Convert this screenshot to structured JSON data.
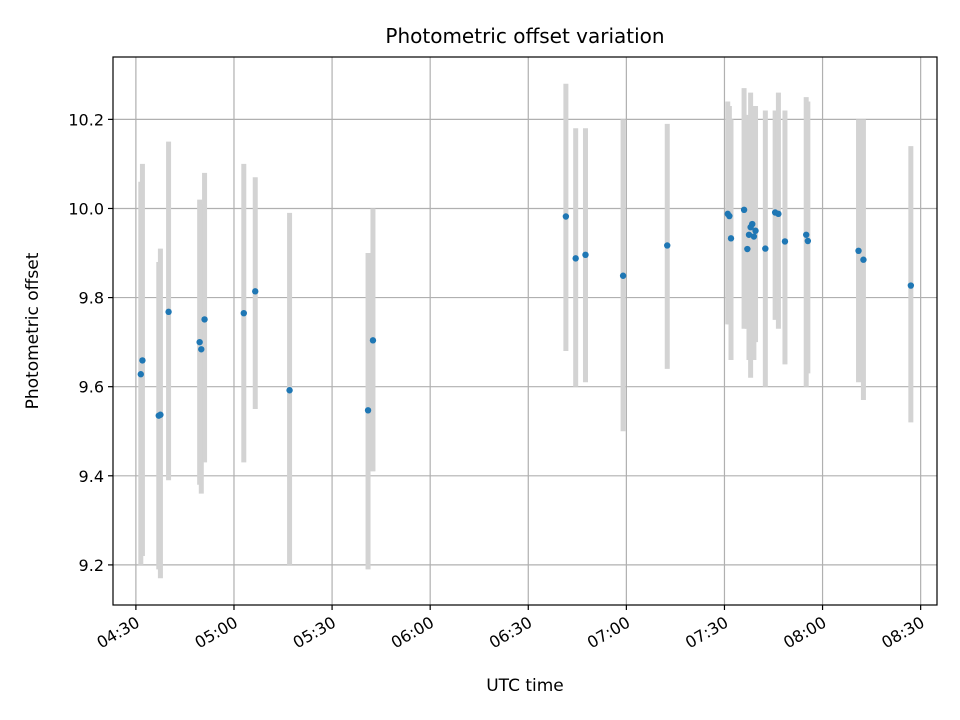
{
  "chart_data": {
    "type": "scatter",
    "title": "Photometric offset variation",
    "xlabel": "UTC time",
    "ylabel": "Photometric offset",
    "x_unit": "minutes",
    "xlim": [
      "04:23",
      "08:35"
    ],
    "ylim": [
      9.11,
      10.34
    ],
    "x_ticks": [
      "04:30",
      "05:00",
      "05:30",
      "06:00",
      "06:30",
      "07:00",
      "07:30",
      "08:00",
      "08:30"
    ],
    "y_ticks": [
      9.2,
      9.4,
      9.6,
      9.8,
      10.0,
      10.2
    ],
    "grid": true,
    "point_color": "#1f77b4",
    "errorbar_color": "#d3d3d3",
    "points": [
      {
        "x": "04:31:30",
        "y": 9.628,
        "ylow": 9.2,
        "yhigh": 10.06
      },
      {
        "x": "04:32:00",
        "y": 9.659,
        "ylow": 9.22,
        "yhigh": 10.1
      },
      {
        "x": "04:37:00",
        "y": 9.535,
        "ylow": 9.19,
        "yhigh": 9.88
      },
      {
        "x": "04:37:30",
        "y": 9.537,
        "ylow": 9.17,
        "yhigh": 9.91
      },
      {
        "x": "04:40:00",
        "y": 9.768,
        "ylow": 9.39,
        "yhigh": 10.15
      },
      {
        "x": "04:49:30",
        "y": 9.7,
        "ylow": 9.38,
        "yhigh": 10.02
      },
      {
        "x": "04:50:00",
        "y": 9.684,
        "ylow": 9.36,
        "yhigh": 10.01
      },
      {
        "x": "04:51:00",
        "y": 9.751,
        "ylow": 9.43,
        "yhigh": 10.08
      },
      {
        "x": "05:03:00",
        "y": 9.765,
        "ylow": 9.43,
        "yhigh": 10.1
      },
      {
        "x": "05:06:30",
        "y": 9.814,
        "ylow": 9.55,
        "yhigh": 10.07
      },
      {
        "x": "05:17:00",
        "y": 9.592,
        "ylow": 9.2,
        "yhigh": 9.99
      },
      {
        "x": "05:41:00",
        "y": 9.547,
        "ylow": 9.19,
        "yhigh": 9.9
      },
      {
        "x": "05:42:30",
        "y": 9.704,
        "ylow": 9.41,
        "yhigh": 10.0
      },
      {
        "x": "06:41:30",
        "y": 9.982,
        "ylow": 9.68,
        "yhigh": 10.28
      },
      {
        "x": "06:44:30",
        "y": 9.888,
        "ylow": 9.6,
        "yhigh": 10.18
      },
      {
        "x": "06:47:30",
        "y": 9.896,
        "ylow": 9.61,
        "yhigh": 10.18
      },
      {
        "x": "06:59:00",
        "y": 9.849,
        "ylow": 9.5,
        "yhigh": 10.2
      },
      {
        "x": "07:12:30",
        "y": 9.917,
        "ylow": 9.64,
        "yhigh": 10.19
      },
      {
        "x": "07:31:00",
        "y": 9.988,
        "ylow": 9.74,
        "yhigh": 10.24
      },
      {
        "x": "07:31:30",
        "y": 9.983,
        "ylow": 9.74,
        "yhigh": 10.23
      },
      {
        "x": "07:32:00",
        "y": 9.933,
        "ylow": 9.66,
        "yhigh": 10.2
      },
      {
        "x": "07:36:00",
        "y": 9.997,
        "ylow": 9.73,
        "yhigh": 10.27
      },
      {
        "x": "07:37:00",
        "y": 9.909,
        "ylow": 9.73,
        "yhigh": 10.15
      },
      {
        "x": "07:37:30",
        "y": 9.941,
        "ylow": 9.66,
        "yhigh": 10.21
      },
      {
        "x": "07:38:00",
        "y": 9.958,
        "ylow": 9.62,
        "yhigh": 10.26
      },
      {
        "x": "07:38:30",
        "y": 9.965,
        "ylow": 9.67,
        "yhigh": 10.23
      },
      {
        "x": "07:39:00",
        "y": 9.937,
        "ylow": 9.66,
        "yhigh": 10.23
      },
      {
        "x": "07:39:30",
        "y": 9.95,
        "ylow": 9.7,
        "yhigh": 10.23
      },
      {
        "x": "07:42:30",
        "y": 9.91,
        "ylow": 9.6,
        "yhigh": 10.22
      },
      {
        "x": "07:45:30",
        "y": 9.991,
        "ylow": 9.75,
        "yhigh": 10.22
      },
      {
        "x": "07:46:30",
        "y": 9.988,
        "ylow": 9.73,
        "yhigh": 10.26
      },
      {
        "x": "07:48:30",
        "y": 9.926,
        "ylow": 9.65,
        "yhigh": 10.22
      },
      {
        "x": "07:55:00",
        "y": 9.941,
        "ylow": 9.6,
        "yhigh": 10.25
      },
      {
        "x": "07:55:30",
        "y": 9.927,
        "ylow": 9.63,
        "yhigh": 10.24
      },
      {
        "x": "08:11:00",
        "y": 9.905,
        "ylow": 9.61,
        "yhigh": 10.2
      },
      {
        "x": "08:12:30",
        "y": 9.885,
        "ylow": 9.57,
        "yhigh": 10.2
      },
      {
        "x": "08:27:00",
        "y": 9.827,
        "ylow": 9.52,
        "yhigh": 10.14
      }
    ]
  }
}
